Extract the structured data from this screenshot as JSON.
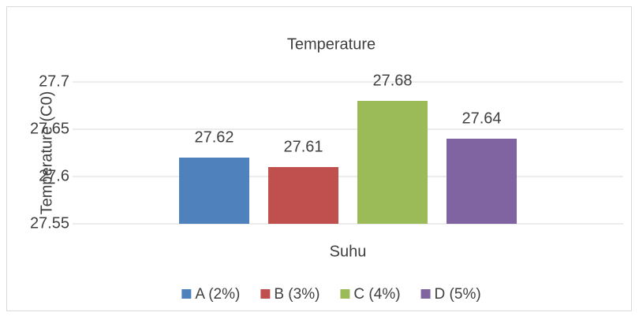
{
  "chart_data": {
    "type": "bar",
    "title": "Temperature",
    "y_label": "Temperature (C0)",
    "categories": [
      "Suhu"
    ],
    "series": [
      {
        "name": "A (2%)",
        "color": "#4f81bd",
        "values": [
          27.62
        ]
      },
      {
        "name": "B (3%)",
        "color": "#c0504d",
        "values": [
          27.61
        ]
      },
      {
        "name": "C (4%)",
        "color": "#9bbb59",
        "values": [
          27.68
        ]
      },
      {
        "name": "D (5%)",
        "color": "#8064a2",
        "values": [
          27.64
        ]
      }
    ],
    "ylim": [
      27.55,
      27.7
    ],
    "yticks": [
      27.55,
      27.6,
      27.65,
      27.7
    ],
    "grid": true,
    "legend": "bottom"
  }
}
